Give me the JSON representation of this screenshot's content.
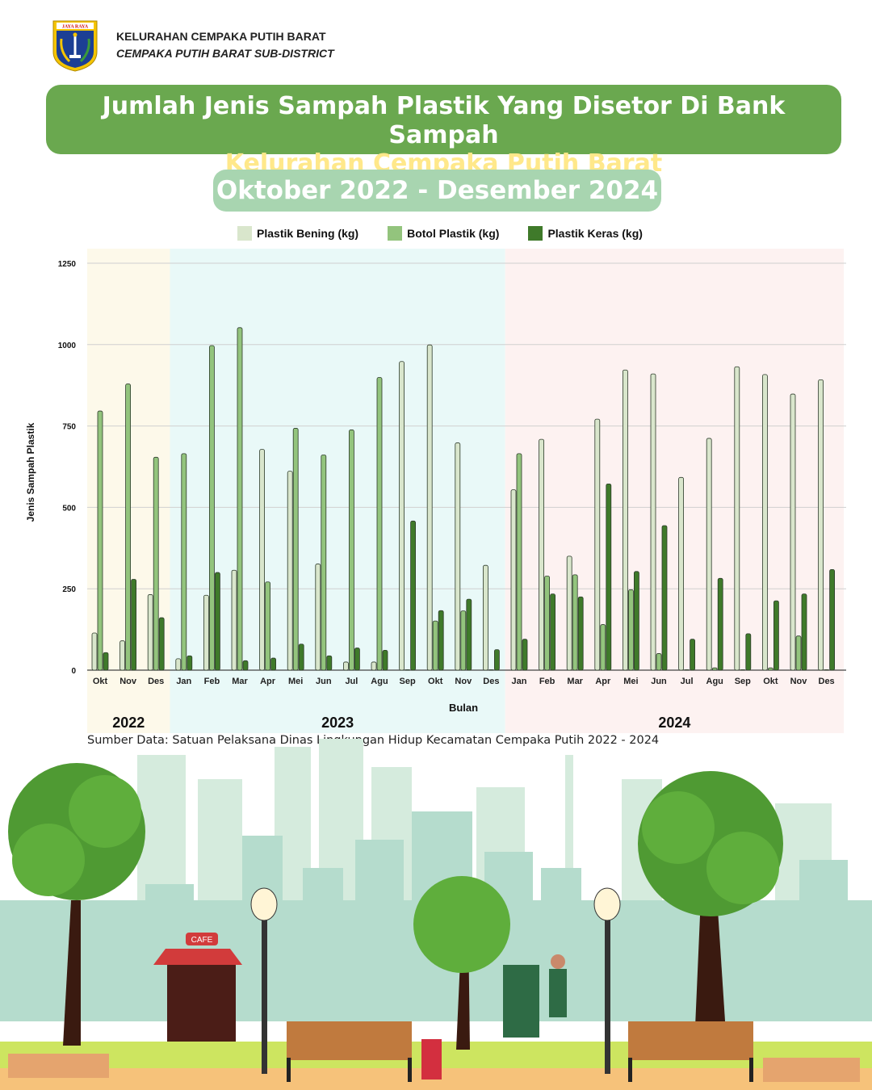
{
  "header": {
    "org_name": "KELURAHAN CEMPAKA PUTIH BARAT",
    "org_name_en": "CEMPAKA PUTIH BARAT SUB-DISTRICT",
    "logo_text": "JAYA RAYA"
  },
  "title": {
    "line1": "Jumlah Jenis Sampah Plastik Yang Disetor Di Bank Sampah",
    "line2": "Kelurahan Cempaka Putih Barat"
  },
  "period": "Oktober 2022 - Desember 2024",
  "source": "Sumber Data: Satuan Pelaksana Dinas Lingkungan Hidup Kecamatan Cempaka Putih 2022 - 2024",
  "scene": {
    "cafe_sign": "CAFE"
  },
  "colors": {
    "title_bg": "#6aa84f",
    "title_highlight": "#ffe88a",
    "period_bg": "#a8d5b0"
  },
  "chart_data": {
    "type": "bar",
    "xlabel": "Bulan",
    "ylabel": "Jenis Sampah Plastik",
    "ylim": [
      0,
      1250
    ],
    "yticks": [
      0,
      250,
      500,
      750,
      1000,
      1250
    ],
    "grid": true,
    "legend_position": "top",
    "categories": [
      "Okt",
      "Nov",
      "Des",
      "Jan",
      "Feb",
      "Mar",
      "Apr",
      "Mei",
      "Jun",
      "Jul",
      "Agu",
      "Sep",
      "Okt",
      "Nov",
      "Des",
      "Jan",
      "Feb",
      "Mar",
      "Apr",
      "Mei",
      "Jun",
      "Jul",
      "Agu",
      "Sep",
      "Okt",
      "Nov",
      "Des"
    ],
    "year_groups": [
      {
        "label": "2022",
        "count": 3,
        "color": "#fdf9ea"
      },
      {
        "label": "2023",
        "count": 12,
        "color": "#e9f9f8"
      },
      {
        "label": "2024",
        "count": 12,
        "color": "#fdf2f1"
      }
    ],
    "series": [
      {
        "name": "Plastik Bening (kg)",
        "color": "#d9e6cc",
        "values": [
          114,
          90,
          232,
          35,
          230,
          307,
          678,
          611,
          326,
          25,
          25,
          948,
          999,
          698,
          322,
          554,
          709,
          350,
          771,
          922,
          910,
          592,
          712,
          932,
          908,
          848,
          892
        ]
      },
      {
        "name": "Botol Plastik (kg)",
        "color": "#93c47d",
        "values": [
          796,
          879,
          654,
          665,
          997,
          1052,
          271,
          743,
          661,
          738,
          899,
          1,
          151,
          182,
          1,
          665,
          289,
          293,
          140,
          247,
          51,
          0,
          7,
          0,
          7,
          105,
          1
        ]
      },
      {
        "name": "Plastik Keras (kg)",
        "color": "#3f7a2a",
        "values": [
          54,
          279,
          161,
          44,
          300,
          29,
          37,
          80,
          44,
          68,
          61,
          458,
          183,
          218,
          63,
          95,
          234,
          225,
          572,
          303,
          444,
          95,
          282,
          112,
          213,
          234,
          309
        ]
      }
    ]
  }
}
